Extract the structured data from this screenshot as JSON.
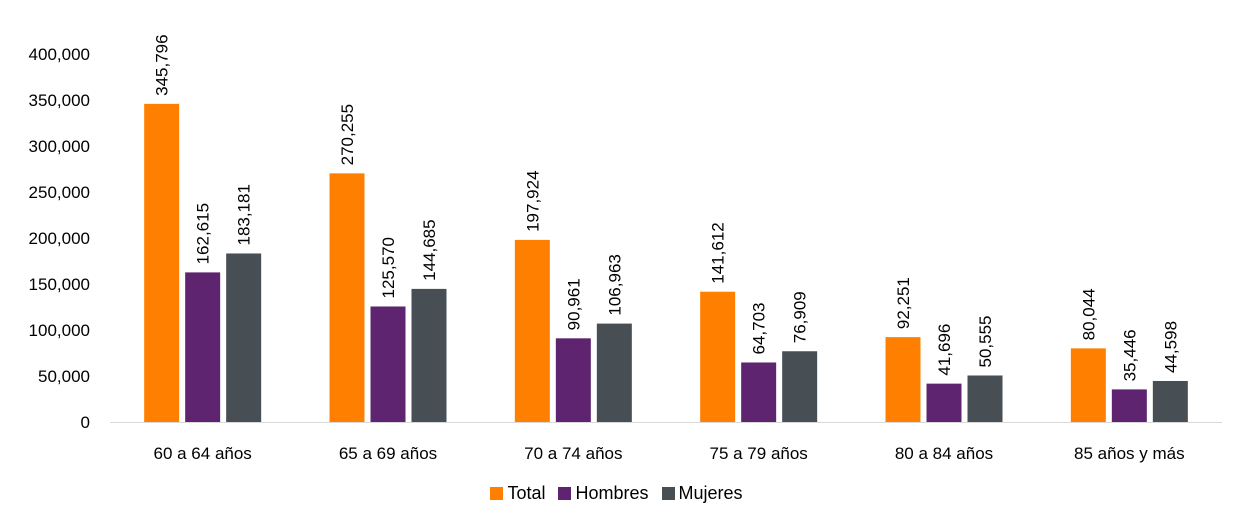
{
  "chart_data": {
    "type": "bar",
    "categories": [
      "60 a 64 años",
      "65 a 69 años",
      "70 a 74 años",
      "75 a 79 años",
      "80 a 84 años",
      "85 años y más"
    ],
    "series": [
      {
        "name": "Total",
        "values": [
          345796,
          270255,
          197924,
          141612,
          92251,
          80044
        ],
        "labels": [
          "345,796",
          "270,255",
          "197,924",
          "141,612",
          "92,251",
          "80,044"
        ],
        "color": "#FF8000"
      },
      {
        "name": "Hombres",
        "values": [
          162615,
          125570,
          90961,
          64703,
          41696,
          35446
        ],
        "labels": [
          "162,615",
          "125,570",
          "90,961",
          "64,703",
          "41,696",
          "35,446"
        ],
        "color": "#5F2470"
      },
      {
        "name": "Mujeres",
        "values": [
          183181,
          144685,
          106963,
          76909,
          50555,
          44598
        ],
        "labels": [
          "183,181",
          "144,685",
          "106,963",
          "76,909",
          "50,555",
          "44,598"
        ],
        "color": "#474E54"
      }
    ],
    "yticks": [
      "0",
      "50,000",
      "100,000",
      "150,000",
      "200,000",
      "250,000",
      "300,000",
      "350,000",
      "400,000"
    ],
    "ylim": [
      0,
      400000
    ],
    "title": "",
    "xlabel": "",
    "ylabel": "",
    "grid": false,
    "legend_position": "bottom"
  }
}
